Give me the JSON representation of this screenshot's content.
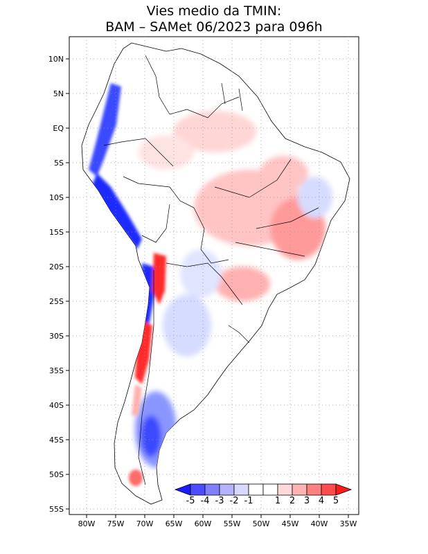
{
  "title": {
    "line1": "Vies medio da TMIN:",
    "line2": "BAM – SAMet 06/2023  para 096h"
  },
  "axes": {
    "lon_labels": [
      "80W",
      "75W",
      "70W",
      "65W",
      "60W",
      "55W",
      "50W",
      "45W",
      "40W",
      "35W"
    ],
    "lat_labels": [
      "10N",
      "5N",
      "EQ",
      "5S",
      "10S",
      "15S",
      "20S",
      "25S",
      "30S",
      "35S",
      "40S",
      "45S",
      "50S",
      "55S"
    ],
    "lon_range": [
      -83,
      -34
    ],
    "lat_range": [
      12.5,
      -56
    ]
  },
  "colorbar": {
    "labels": [
      "-5",
      "-4",
      "-3",
      "-2",
      "-1",
      "1",
      "2",
      "3",
      "4",
      "5"
    ],
    "colors": [
      "#1a1aff",
      "#4d4dff",
      "#8080ff",
      "#b3b3ff",
      "#d9d9ff",
      "#ffffff",
      "#ffd9d9",
      "#ffb3b3",
      "#ff8080",
      "#ff4d4d",
      "#ff1a1a"
    ]
  },
  "colors": {
    "land": "#ffffff",
    "warm_light": "#ffd6d6",
    "warm_mid": "#ff9a9a",
    "warm_strong": "#ff2a2a",
    "cold_light": "#d6dcff",
    "cold_mid": "#8a96ff",
    "cold_strong": "#1a2aff"
  }
}
